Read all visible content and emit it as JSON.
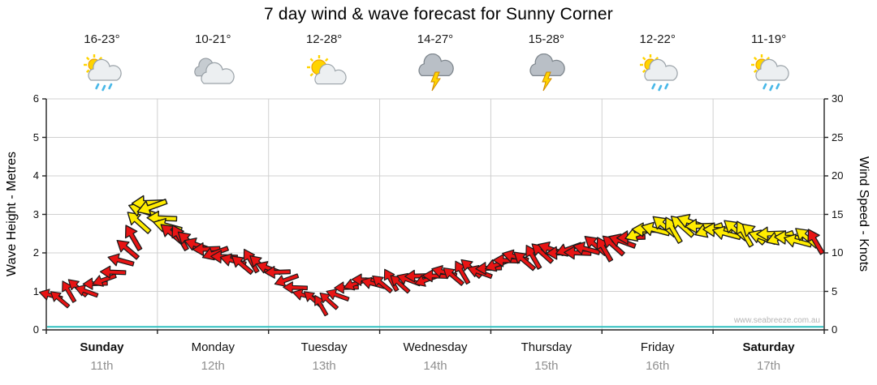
{
  "page": {
    "title": "7 day wind & wave forecast for Sunny Corner",
    "watermark": "www.seabreeze.com.au"
  },
  "days": [
    {
      "label": "Sunday",
      "date": "11th",
      "temp": "16-23°",
      "icon": "sun-cloud-rain",
      "bold": true
    },
    {
      "label": "Monday",
      "date": "12th",
      "temp": "10-21°",
      "icon": "cloud",
      "bold": false
    },
    {
      "label": "Tuesday",
      "date": "13th",
      "temp": "12-28°",
      "icon": "sun-cloud",
      "bold": false
    },
    {
      "label": "Wednesday",
      "date": "14th",
      "temp": "14-27°",
      "icon": "storm",
      "bold": false
    },
    {
      "label": "Thursday",
      "date": "15th",
      "temp": "15-28°",
      "icon": "storm",
      "bold": false
    },
    {
      "label": "Friday",
      "date": "16th",
      "temp": "12-22°",
      "icon": "sun-cloud-rain",
      "bold": false
    },
    {
      "label": "Saturday",
      "date": "17th",
      "temp": "11-19°",
      "icon": "sun-cloud-rain",
      "bold": true
    }
  ],
  "axes": {
    "left_label": "Wave Height - Metres",
    "left_ticks": [
      0,
      1,
      2,
      3,
      4,
      5,
      6
    ],
    "right_label": "Wind Speed - Knots",
    "right_ticks": [
      0,
      5,
      10,
      15,
      20,
      25,
      30
    ]
  },
  "chart_data": {
    "type": "scatter",
    "subtype": "wind-direction-arrows",
    "title": "7 day wind & wave forecast for Sunny Corner",
    "x_unit": "days from Sunday 00:00",
    "x_categories": [
      "Sunday 11th",
      "Monday 12th",
      "Tuesday 13th",
      "Wednesday 14th",
      "Thursday 15th",
      "Friday 16th",
      "Saturday 17th"
    ],
    "ylim_wave_m": [
      0,
      6
    ],
    "ylim_wind_knots": [
      0,
      30
    ],
    "grid": true,
    "t_days": [
      0.04,
      0.12,
      0.2,
      0.28,
      0.36,
      0.44,
      0.52,
      0.6,
      0.67,
      0.73,
      0.78,
      0.83,
      0.87,
      0.91,
      0.95,
      1.04,
      1.09,
      1.13,
      1.2,
      1.28,
      1.36,
      1.44,
      1.52,
      1.6,
      1.68,
      1.76,
      1.84,
      1.92,
      2.0,
      2.08,
      2.16,
      2.24,
      2.32,
      2.4,
      2.47,
      2.54,
      2.62,
      2.7,
      2.78,
      2.86,
      2.94,
      3.02,
      3.1,
      3.18,
      3.26,
      3.34,
      3.42,
      3.5,
      3.58,
      3.66,
      3.74,
      3.82,
      3.9,
      3.98,
      4.06,
      4.14,
      4.22,
      4.3,
      4.38,
      4.46,
      4.54,
      4.62,
      4.7,
      4.78,
      4.86,
      4.94,
      5.02,
      5.1,
      5.18,
      5.26,
      5.33,
      5.4,
      5.48,
      5.56,
      5.64,
      5.72,
      5.8,
      5.88,
      5.96,
      6.04,
      6.12,
      6.2,
      6.28,
      6.36,
      6.44,
      6.52,
      6.6,
      6.68,
      6.76,
      6.84,
      6.92
    ],
    "wind_knots": [
      4.5,
      4,
      5,
      5.5,
      5,
      6,
      6.5,
      7.5,
      9,
      10.5,
      12,
      14,
      15.5,
      16.5,
      16,
      14.5,
      13.5,
      12.5,
      12,
      11.5,
      11,
      10.5,
      10,
      9.5,
      9,
      8.5,
      9,
      8.5,
      8,
      7.5,
      6.5,
      5.5,
      4.5,
      4,
      3.2,
      3.8,
      4.5,
      5.5,
      6,
      6.5,
      6,
      6,
      6.5,
      6,
      6.5,
      7,
      6.5,
      7,
      7.5,
      7,
      7.5,
      8,
      7.5,
      8,
      8.5,
      9,
      9.5,
      9,
      9.5,
      10,
      10.5,
      10,
      10.5,
      10,
      10.5,
      11,
      10.5,
      11,
      11.5,
      12,
      12.5,
      13,
      13,
      13.5,
      13,
      13.5,
      14,
      13.5,
      13,
      13,
      12.5,
      13,
      12.5,
      12.5,
      12,
      12.5,
      12,
      12,
      11.5,
      12,
      11.5
    ],
    "arrow_colors": "rrrrrrrrrrryyyyyyrrrrrrrrrrrrrrrrrrrrrrrrrrrrrrrrrrrrrrrrrrrrrrrrrrrrryyyyyyyyyyyyyyyyyyyy",
    "dir_deg_pattern": [
      195,
      220,
      240,
      222,
      200,
      178,
      160,
      182
    ],
    "wave_line": {
      "value_m": 0.08,
      "color": "#2fbfbf"
    },
    "colors": {
      "arrow_red": "#e81414",
      "arrow_yellow": "#ffec00",
      "arrow_outline": "#1a1a1a",
      "grid": "#d0d0d0",
      "axis": "#222222"
    }
  }
}
